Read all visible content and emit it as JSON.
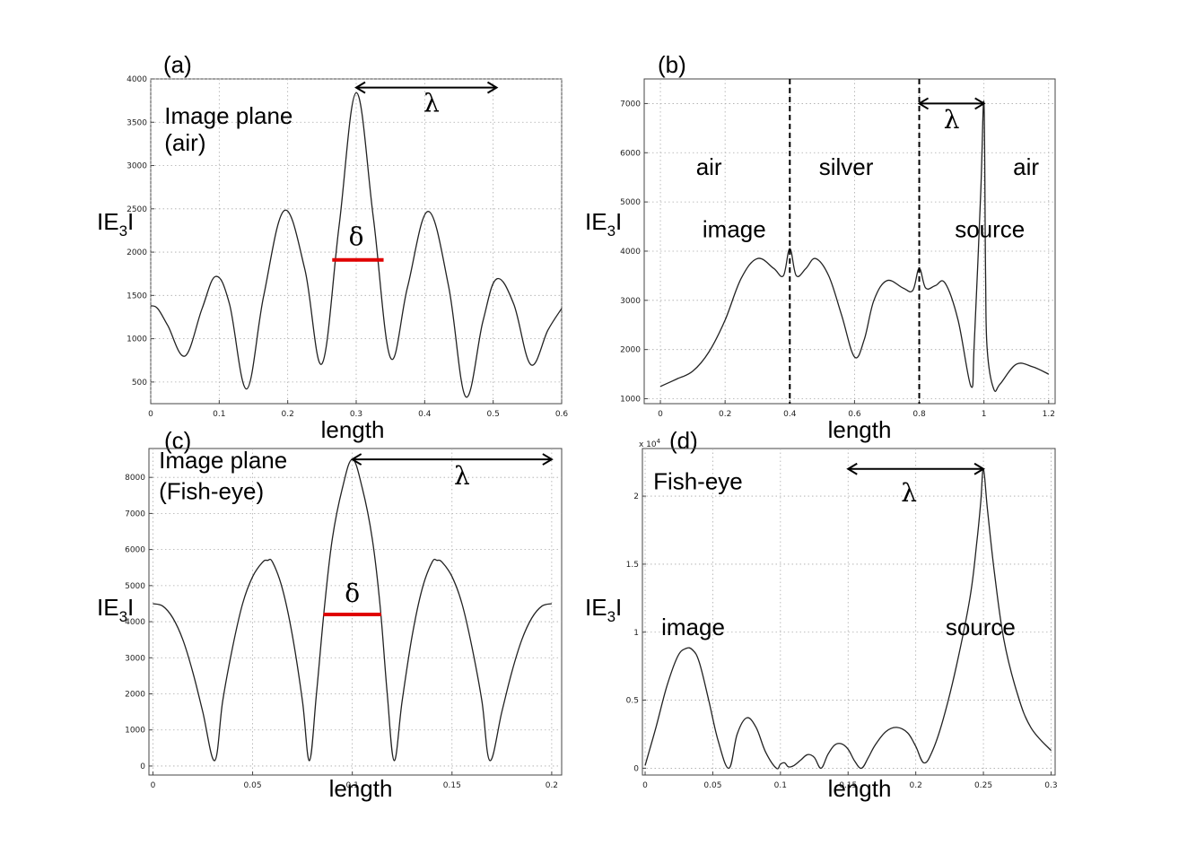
{
  "chart_data": [
    {
      "id": "a",
      "type": "line",
      "panel_label": "(a)",
      "xlabel": "length",
      "ylabel_main": "IE",
      "ylabel_sub": "3",
      "ylabel_end": "I",
      "xlim": [
        0,
        0.6
      ],
      "ylim": [
        250,
        4000
      ],
      "xticks": [
        0,
        0.1,
        0.2,
        0.3,
        0.4,
        0.5,
        0.6
      ],
      "xtick_labels": [
        "0",
        "0.1",
        "0.2",
        "0.3",
        "0.4",
        "0.5",
        "0.6"
      ],
      "yticks": [
        500,
        1000,
        1500,
        2000,
        2500,
        3000,
        3500,
        4000
      ],
      "ytick_labels": [
        "500",
        "1000",
        "1500",
        "2000",
        "2500",
        "3000",
        "3500",
        "4000"
      ],
      "grid": true,
      "series": [
        {
          "x": [
            0,
            0.01,
            0.025,
            0.05,
            0.075,
            0.095,
            0.115,
            0.14,
            0.165,
            0.195,
            0.225,
            0.25,
            0.275,
            0.3,
            0.325,
            0.35,
            0.375,
            0.405,
            0.435,
            0.46,
            0.485,
            0.505,
            0.53,
            0.555,
            0.58,
            0.6
          ],
          "y": [
            1380,
            1350,
            1150,
            800,
            1350,
            1720,
            1400,
            420,
            1500,
            2480,
            1800,
            710,
            2300,
            3840,
            2400,
            780,
            1600,
            2470,
            1600,
            330,
            1200,
            1690,
            1400,
            700,
            1100,
            1350
          ]
        }
      ],
      "annotations": [
        {
          "kind": "text",
          "text": "Image plane",
          "x": 0.02,
          "y": 3480
        },
        {
          "kind": "text",
          "text": "(air)",
          "x": 0.02,
          "y": 3170
        },
        {
          "kind": "arrow",
          "x1": 0.3,
          "x2": 0.505,
          "y": 3900,
          "label": "λ",
          "label_x": 0.41,
          "label_y": 3620
        },
        {
          "kind": "bar",
          "x1": 0.265,
          "x2": 0.34,
          "y": 1910,
          "label": "δ",
          "label_x": 0.3,
          "label_y": 2080
        }
      ]
    },
    {
      "id": "b",
      "type": "line",
      "panel_label": "(b)",
      "xlabel": "length",
      "ylabel_main": "IE",
      "ylabel_sub": "3",
      "ylabel_end": "I",
      "xlim": [
        -0.05,
        1.22
      ],
      "ylim": [
        900,
        7500
      ],
      "xticks": [
        0,
        0.2,
        0.4,
        0.6,
        0.8,
        1,
        1.2
      ],
      "xtick_labels": [
        "0",
        "0.2",
        "0.4",
        "0.6",
        "0.8",
        "1",
        "1.2"
      ],
      "yticks": [
        1000,
        2000,
        3000,
        4000,
        5000,
        6000,
        7000
      ],
      "ytick_labels": [
        "1000",
        "2000",
        "3000",
        "4000",
        "5000",
        "6000",
        "7000"
      ],
      "grid": true,
      "series": [
        {
          "x": [
            0,
            0.05,
            0.1,
            0.15,
            0.2,
            0.25,
            0.3,
            0.35,
            0.38,
            0.4,
            0.42,
            0.45,
            0.48,
            0.52,
            0.56,
            0.6,
            0.63,
            0.66,
            0.7,
            0.75,
            0.78,
            0.8,
            0.82,
            0.85,
            0.88,
            0.92,
            0.96,
            0.97,
            0.99,
            1.0,
            1.005,
            1.01,
            1.03,
            1.05,
            1.1,
            1.15,
            1.2
          ],
          "y": [
            1250,
            1400,
            1560,
            1950,
            2600,
            3450,
            3850,
            3650,
            3500,
            4050,
            3500,
            3650,
            3850,
            3500,
            2700,
            1850,
            2200,
            3000,
            3400,
            3250,
            3200,
            3650,
            3250,
            3300,
            3350,
            2600,
            1250,
            2100,
            5200,
            7000,
            3500,
            2000,
            1200,
            1300,
            1700,
            1650,
            1500
          ]
        }
      ],
      "annotations": [
        {
          "kind": "vline",
          "x": 0.4
        },
        {
          "kind": "vline",
          "x": 0.8
        },
        {
          "kind": "text",
          "text": "air",
          "x": 0.11,
          "y": 5550
        },
        {
          "kind": "text",
          "text": "silver",
          "x": 0.49,
          "y": 5550
        },
        {
          "kind": "text",
          "text": "air",
          "x": 1.09,
          "y": 5550
        },
        {
          "kind": "text",
          "text": "image",
          "x": 0.13,
          "y": 4280
        },
        {
          "kind": "text",
          "text": "source",
          "x": 0.91,
          "y": 4280
        },
        {
          "kind": "arrow",
          "x1": 0.8,
          "x2": 1.0,
          "y": 7000,
          "label": "λ",
          "label_x": 0.9,
          "label_y": 6500
        }
      ]
    },
    {
      "id": "c",
      "type": "line",
      "panel_label": "(c)",
      "xlabel": "length",
      "ylabel_main": "IE",
      "ylabel_sub": "3",
      "ylabel_end": "I",
      "xlim": [
        -0.002,
        0.205
      ],
      "ylim": [
        -250,
        8800
      ],
      "xticks": [
        0,
        0.05,
        0.1,
        0.15,
        0.2
      ],
      "xtick_labels": [
        "0",
        "0.05",
        "0.1",
        "0.15",
        "0.2"
      ],
      "yticks": [
        0,
        1000,
        2000,
        3000,
        4000,
        5000,
        6000,
        7000,
        8000
      ],
      "ytick_labels": [
        "0",
        "1000",
        "2000",
        "3000",
        "4000",
        "5000",
        "6000",
        "7000",
        "8000"
      ],
      "grid": true,
      "series": [
        {
          "x": [
            0,
            0.005,
            0.01,
            0.015,
            0.02,
            0.025,
            0.031,
            0.035,
            0.04,
            0.045,
            0.05,
            0.055,
            0.0575,
            0.06,
            0.065,
            0.07,
            0.075,
            0.0785,
            0.082,
            0.086,
            0.09,
            0.095,
            0.1,
            0.105,
            0.11,
            0.114,
            0.1175,
            0.121,
            0.125,
            0.13,
            0.135,
            0.14,
            0.1425,
            0.145,
            0.15,
            0.155,
            0.16,
            0.165,
            0.169,
            0.175,
            0.18,
            0.185,
            0.19,
            0.195,
            0.2
          ],
          "y": [
            4500,
            4430,
            4100,
            3500,
            2600,
            1500,
            150,
            1800,
            3300,
            4500,
            5250,
            5650,
            5700,
            5650,
            4900,
            3600,
            1800,
            150,
            2000,
            4400,
            6300,
            7700,
            8500,
            7700,
            6300,
            4400,
            2000,
            150,
            1800,
            3600,
            4900,
            5650,
            5700,
            5650,
            5250,
            4500,
            3300,
            1800,
            150,
            1500,
            2600,
            3500,
            4100,
            4430,
            4500
          ]
        }
      ],
      "annotations": [
        {
          "kind": "text",
          "text": "Image plane",
          "x": 0.003,
          "y": 8250
        },
        {
          "kind": "text",
          "text": "(Fish-eye)",
          "x": 0.003,
          "y": 7400
        },
        {
          "kind": "arrow",
          "x1": 0.1,
          "x2": 0.2,
          "y": 8500,
          "label": "λ",
          "label_x": 0.155,
          "label_y": 7800
        },
        {
          "kind": "bar",
          "x1": 0.0855,
          "x2": 0.1145,
          "y": 4200,
          "label": "δ",
          "label_x": 0.1,
          "label_y": 4550
        }
      ]
    },
    {
      "id": "d",
      "type": "line",
      "panel_label": "(d)",
      "xlabel": "length",
      "ylabel_main": "IE",
      "ylabel_sub": "3",
      "ylabel_end": "I",
      "scale_label": "x 10",
      "scale_exp": "4",
      "xlim": [
        -0.002,
        0.303
      ],
      "ylim": [
        -0.05,
        2.35
      ],
      "xticks": [
        0,
        0.05,
        0.1,
        0.15,
        0.2,
        0.25,
        0.3
      ],
      "xtick_labels": [
        "0",
        "0.05",
        "0.1",
        "0.15",
        "0.2",
        "0.25",
        "0.3"
      ],
      "yticks": [
        0,
        0.5,
        1,
        1.5,
        2
      ],
      "ytick_labels": [
        "0",
        "0.5",
        "1",
        "1.5",
        "2"
      ],
      "grid": true,
      "series": [
        {
          "x": [
            0,
            0.008,
            0.016,
            0.024,
            0.03,
            0.035,
            0.04,
            0.047,
            0.054,
            0.062,
            0.068,
            0.075,
            0.082,
            0.089,
            0.097,
            0.1,
            0.103,
            0.106,
            0.11,
            0.115,
            0.12,
            0.125,
            0.13,
            0.135,
            0.14,
            0.145,
            0.15,
            0.155,
            0.16,
            0.165,
            0.17,
            0.178,
            0.186,
            0.194,
            0.2,
            0.206,
            0.212,
            0.22,
            0.23,
            0.24,
            0.245,
            0.248,
            0.25,
            0.253,
            0.258,
            0.265,
            0.275,
            0.285,
            0.3
          ],
          "y": [
            0.02,
            0.3,
            0.6,
            0.82,
            0.88,
            0.87,
            0.78,
            0.5,
            0.2,
            0.0,
            0.25,
            0.37,
            0.3,
            0.12,
            0.0,
            0.03,
            0.04,
            0.01,
            0.02,
            0.06,
            0.1,
            0.08,
            0.0,
            0.1,
            0.17,
            0.18,
            0.14,
            0.05,
            0.0,
            0.08,
            0.17,
            0.27,
            0.3,
            0.26,
            0.16,
            0.04,
            0.12,
            0.35,
            0.75,
            1.25,
            1.65,
            1.95,
            2.2,
            1.9,
            1.45,
            0.95,
            0.55,
            0.3,
            0.13
          ]
        }
      ],
      "annotations": [
        {
          "kind": "text",
          "text": "Fish-eye",
          "x": 0.006,
          "y": 2.05
        },
        {
          "kind": "text",
          "text": "image",
          "x": 0.012,
          "y": 0.98
        },
        {
          "kind": "text",
          "text": "source",
          "x": 0.222,
          "y": 0.98
        },
        {
          "kind": "arrow",
          "x1": 0.15,
          "x2": 0.25,
          "y": 2.2,
          "label": "λ",
          "label_x": 0.195,
          "label_y": 1.96
        }
      ]
    }
  ]
}
